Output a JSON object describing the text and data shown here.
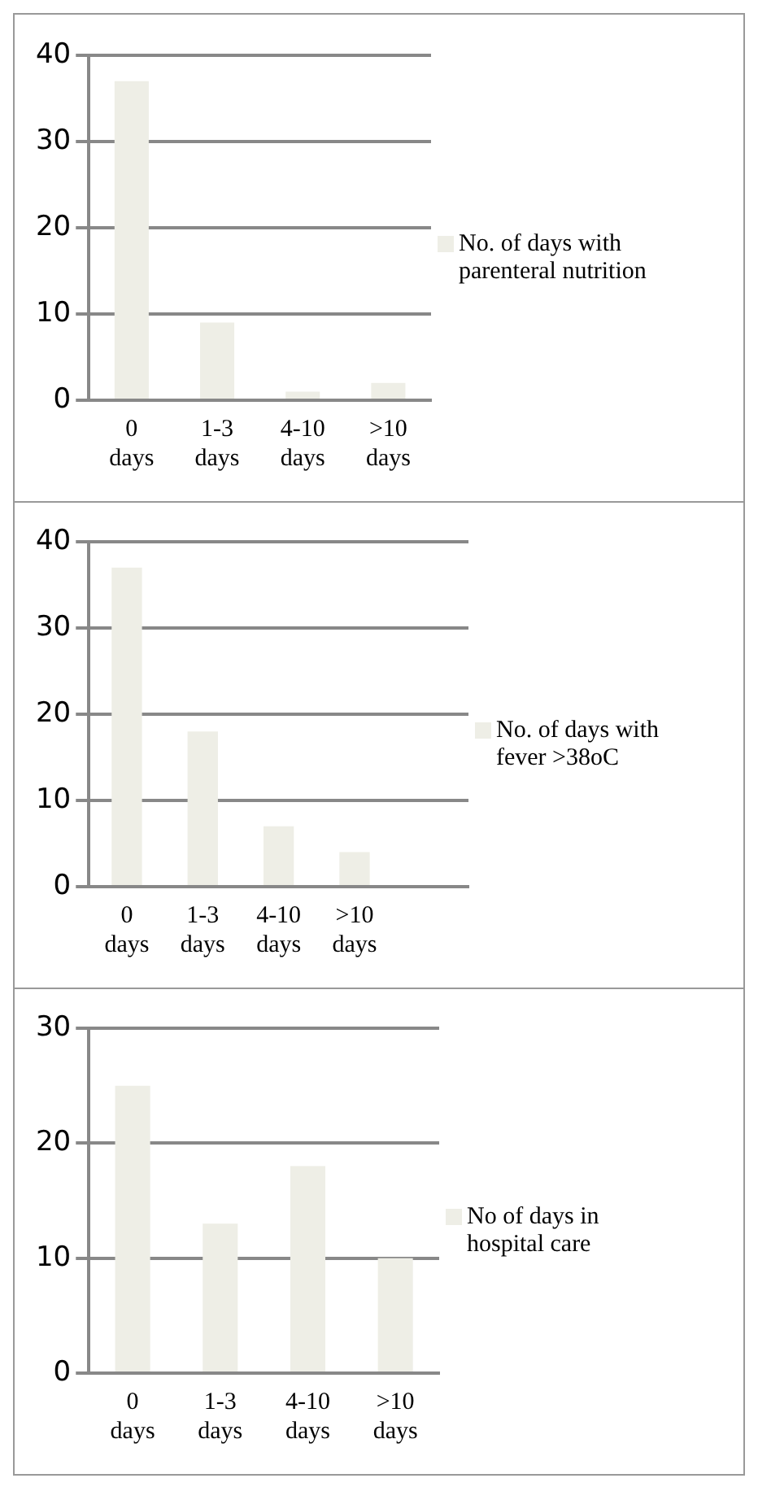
{
  "chart_data": [
    {
      "type": "bar",
      "categories": [
        "0 days",
        "1-3 days",
        "4-10 days",
        ">10 days"
      ],
      "series": [
        {
          "name": "No. of days with parenteral nutrition",
          "color": "#eeeee6",
          "values": [
            37,
            9,
            1,
            2
          ]
        }
      ],
      "ylim": [
        0,
        40
      ],
      "yticks": [
        0,
        10,
        20,
        30,
        40
      ],
      "grid": "y",
      "legend": "right"
    },
    {
      "type": "bar",
      "categories": [
        "0 days",
        "1-3 days",
        "4-10 days",
        ">10 days",
        null
      ],
      "series": [
        {
          "name": "No. of days with fever >38oC",
          "color": "#eeeee6",
          "values": [
            37,
            18,
            7,
            4,
            null
          ]
        }
      ],
      "ylim": [
        0,
        40
      ],
      "yticks": [
        0,
        10,
        20,
        30,
        40
      ],
      "grid": "y",
      "legend": "right"
    },
    {
      "type": "bar",
      "categories": [
        "0 days",
        "1-3 days",
        "4-10 days",
        ">10 days"
      ],
      "series": [
        {
          "name": "No of days in hospital care",
          "color": "#eeeee6",
          "values": [
            25,
            13,
            18,
            10
          ]
        }
      ],
      "ylim": [
        0,
        30
      ],
      "yticks": [
        0,
        10,
        20,
        30
      ],
      "grid": "y",
      "legend": "right"
    }
  ]
}
